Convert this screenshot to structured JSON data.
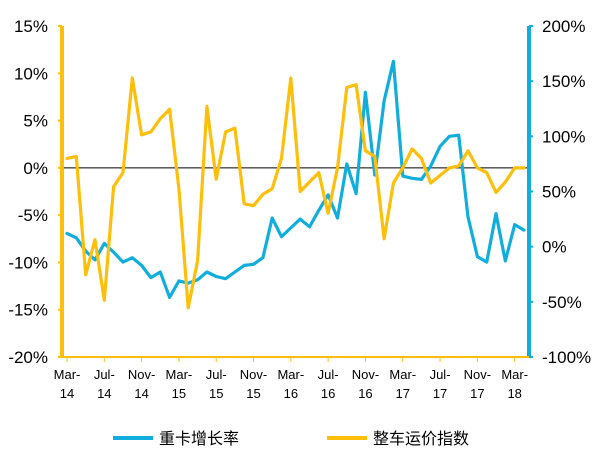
{
  "chart_data": {
    "type": "line",
    "x": [
      "Mar-14",
      "Apr-14",
      "May-14",
      "Jun-14",
      "Jul-14",
      "Aug-14",
      "Sep-14",
      "Oct-14",
      "Nov-14",
      "Dec-14",
      "Jan-15",
      "Feb-15",
      "Mar-15",
      "Apr-15",
      "May-15",
      "Jun-15",
      "Jul-15",
      "Aug-15",
      "Sep-15",
      "Oct-15",
      "Nov-15",
      "Dec-15",
      "Jan-16",
      "Feb-16",
      "Mar-16",
      "Apr-16",
      "May-16",
      "Jun-16",
      "Jul-16",
      "Aug-16",
      "Sep-16",
      "Oct-16",
      "Nov-16",
      "Dec-16",
      "Jan-17",
      "Feb-17",
      "Mar-17",
      "Apr-17",
      "May-17",
      "Jun-17",
      "Jul-17",
      "Aug-17",
      "Sep-17",
      "Oct-17",
      "Nov-17",
      "Dec-17",
      "Jan-18",
      "Feb-18",
      "Mar-18",
      "Apr-18"
    ],
    "x_tick_labels": [
      {
        "line1": "Mar-",
        "line2": "14",
        "index": 0
      },
      {
        "line1": "Jul-",
        "line2": "14",
        "index": 4
      },
      {
        "line1": "Nov-",
        "line2": "14",
        "index": 8
      },
      {
        "line1": "Mar-",
        "line2": "15",
        "index": 12
      },
      {
        "line1": "Jul-",
        "line2": "15",
        "index": 16
      },
      {
        "line1": "Nov-",
        "line2": "15",
        "index": 20
      },
      {
        "line1": "Mar-",
        "line2": "16",
        "index": 24
      },
      {
        "line1": "Jul-",
        "line2": "16",
        "index": 28
      },
      {
        "line1": "Nov-",
        "line2": "16",
        "index": 32
      },
      {
        "line1": "Mar-",
        "line2": "17",
        "index": 36
      },
      {
        "line1": "Jul-",
        "line2": "17",
        "index": 40
      },
      {
        "line1": "Nov-",
        "line2": "17",
        "index": 44
      },
      {
        "line1": "Mar-",
        "line2": "18",
        "index": 48
      }
    ],
    "left_axis": {
      "ylim": [
        -20,
        15
      ],
      "ticks": [
        15,
        10,
        5,
        0,
        -5,
        -10,
        -15,
        -20
      ],
      "tick_labels": [
        "15%",
        "10%",
        "5%",
        "0%",
        "-5%",
        "-10%",
        "-15%",
        "-20%"
      ],
      "color": "#FDBF0A"
    },
    "right_axis": {
      "ylim": [
        -100,
        200
      ],
      "ticks": [
        200,
        150,
        100,
        50,
        0,
        -50,
        -100
      ],
      "tick_labels": [
        "200%",
        "150%",
        "100%",
        "50%",
        "0%",
        "-50%",
        "-100%"
      ],
      "color": "#11AEDD"
    },
    "grid": false,
    "zero_line": true,
    "legend_position": "bottom",
    "series": [
      {
        "name": "重卡增长率",
        "axis": "right",
        "color": "#11AEDD",
        "values": [
          12,
          8,
          -4,
          -12,
          3,
          -5,
          -14,
          -10,
          -17,
          -28,
          -23,
          -46,
          -31,
          -33,
          -30,
          -23,
          -27,
          -29,
          -23,
          -17,
          -16,
          -10,
          26,
          9,
          17,
          25,
          18,
          33,
          47,
          26,
          75,
          48,
          140,
          65,
          132,
          168,
          64,
          62,
          61,
          73,
          91,
          100,
          101,
          27,
          -9,
          -14,
          30,
          -13,
          20,
          15
        ]
      },
      {
        "name": "整车运价指数",
        "axis": "left",
        "color": "#FDBF0A",
        "values": [
          1.0,
          1.2,
          -11.3,
          -7.6,
          -14.0,
          -2.0,
          -0.5,
          9.5,
          3.5,
          3.8,
          5.2,
          6.2,
          -2.2,
          -14.8,
          -9.8,
          6.5,
          -1.2,
          3.8,
          4.2,
          -3.8,
          -4.0,
          -2.8,
          -2.2,
          1.0,
          9.5,
          -2.5,
          -1.5,
          -0.5,
          -4.8,
          0.0,
          8.5,
          8.8,
          1.8,
          1.2,
          -7.5,
          -1.6,
          0.0,
          2.0,
          1.0,
          -1.6,
          -0.8,
          0.0,
          0.2,
          1.8,
          0.0,
          -0.5,
          -2.6,
          -1.5,
          0.0,
          0.0
        ]
      }
    ]
  }
}
